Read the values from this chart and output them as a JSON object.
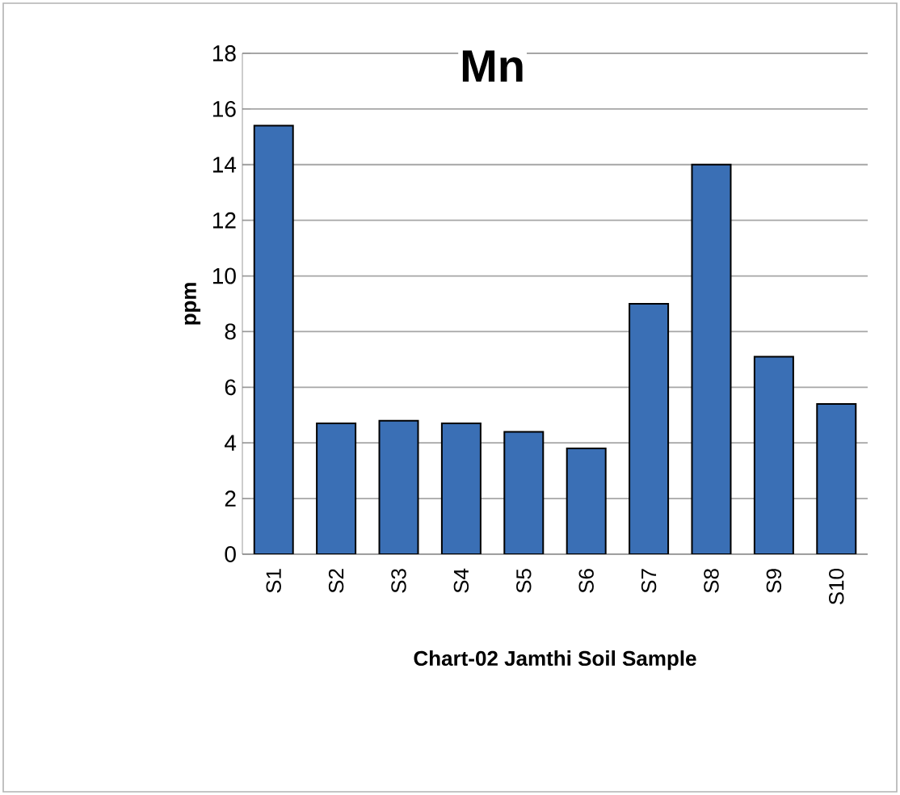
{
  "chart_data": {
    "type": "bar",
    "title": "Mn",
    "xlabel": "Chart-02 Jamthi Soil Sample",
    "ylabel": "ppm",
    "categories": [
      "S1",
      "S2",
      "S3",
      "S4",
      "S5",
      "S6",
      "S7",
      "S8",
      "S9",
      "S10"
    ],
    "values": [
      15.4,
      4.7,
      4.8,
      4.7,
      4.4,
      3.8,
      9.0,
      14.0,
      7.1,
      5.4
    ],
    "color": "#3a6fb5",
    "ylim": [
      0,
      18
    ],
    "yticks": [
      0,
      2,
      4,
      6,
      8,
      10,
      12,
      14,
      16,
      18
    ],
    "grid": "y"
  }
}
